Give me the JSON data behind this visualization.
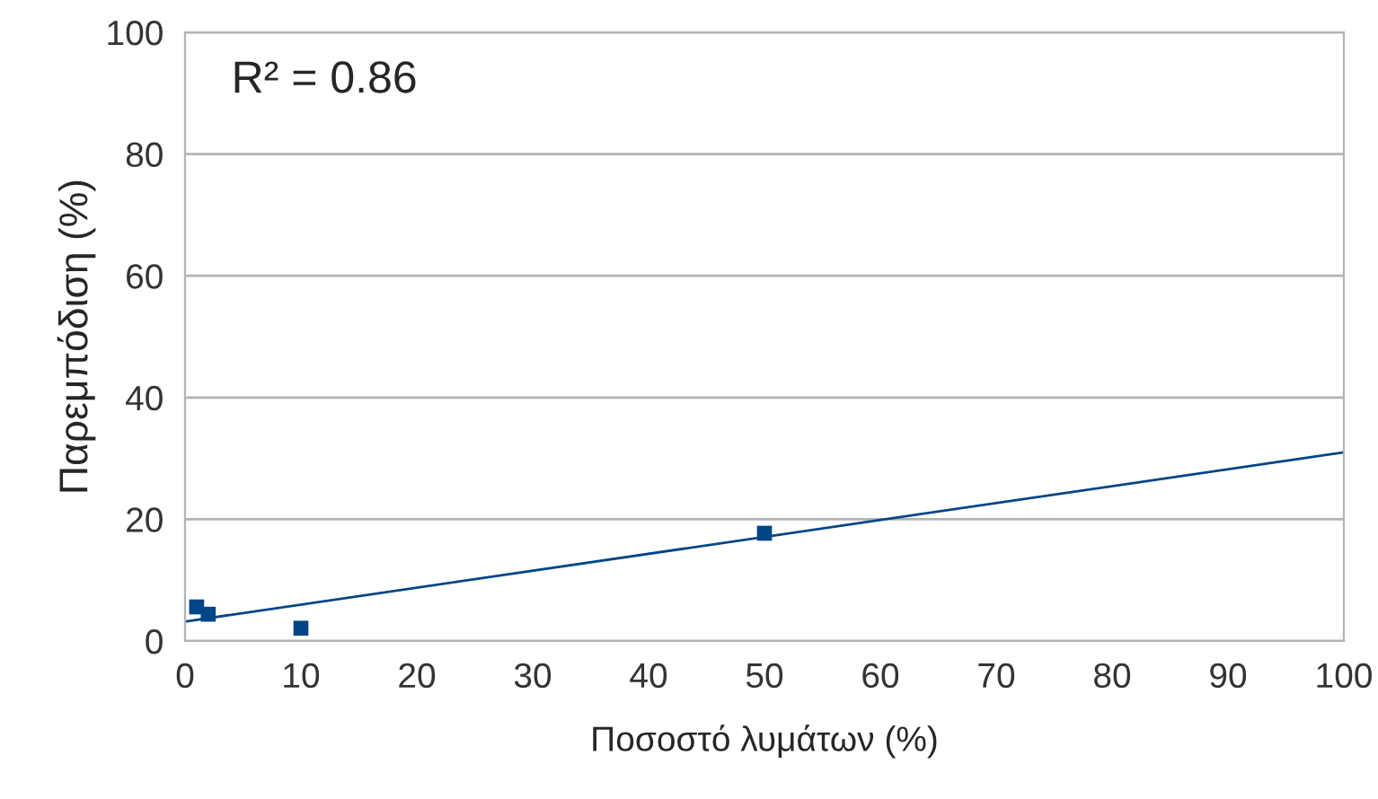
{
  "chart_data": {
    "type": "scatter",
    "xlabel": "Ποσοστό λυμάτων (%)",
    "ylabel": "Παρεμπόδιση (%)",
    "annotations": [
      "R² = 0.86"
    ],
    "series": [
      {
        "color": "#004586",
        "marker": "square",
        "x": [
          1,
          2,
          10,
          50
        ],
        "values": [
          5.6,
          4.4,
          2.1,
          17.7
        ]
      },
      {
        "type": "line",
        "color": "#004586",
        "marker": "none",
        "x": [
          0,
          100
        ],
        "values": [
          3.2,
          31.0
        ]
      }
    ],
    "xlim": [
      0,
      100
    ],
    "ylim": [
      0,
      100
    ],
    "xticks": [
      0,
      10,
      20,
      30,
      40,
      50,
      60,
      70,
      80,
      90,
      100
    ],
    "yticks": [
      0,
      20,
      40,
      60,
      80,
      100
    ],
    "grid": "y"
  }
}
